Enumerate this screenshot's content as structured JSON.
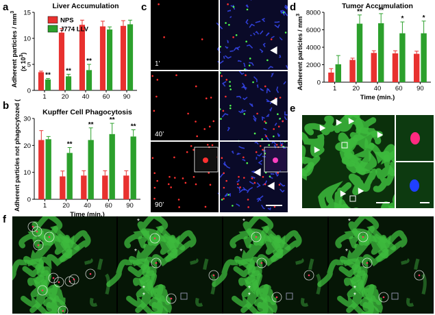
{
  "colors": {
    "nps": "#e8312f",
    "llv": "#2ca02c",
    "blue": "#2a3bd6",
    "green_tissue": "#3dbb3d"
  },
  "panel_labels": [
    "a",
    "b",
    "c",
    "d",
    "e",
    "f"
  ],
  "panel_c": {
    "time_labels": [
      "1’",
      "40’",
      "90’"
    ]
  },
  "chart_data": [
    {
      "id": "a",
      "type": "bar",
      "title": "Liver Accumulation",
      "ylabel": "Adherent particles / mm",
      "ylabel_sup": "3",
      "ylabel2": "(x 10",
      "ylabel2_sup": "3",
      "ylabel2_end": ")",
      "xlabel": "",
      "categories": [
        "1",
        "20",
        "40",
        "60",
        "90"
      ],
      "ylim": [
        0,
        15
      ],
      "yticks": [
        "0",
        "5",
        "10",
        "15"
      ],
      "legend": [
        "NPS",
        "J774 LLV"
      ],
      "series": [
        {
          "name": "NPS",
          "values": [
            3.5,
            11.1,
            12.6,
            12.3,
            12.4
          ],
          "errors": [
            0.2,
            0.8,
            0.9,
            1.0,
            1.0
          ]
        },
        {
          "name": "J774 LLV",
          "values": [
            2.1,
            2.7,
            3.9,
            11.7,
            12.7
          ],
          "errors": [
            0.2,
            0.4,
            1.1,
            0.5,
            0.8
          ]
        }
      ],
      "annotations": [
        {
          "series": 1,
          "index": 0,
          "text": "**"
        },
        {
          "series": 1,
          "index": 1,
          "text": "**"
        },
        {
          "series": 1,
          "index": 2,
          "text": "**"
        }
      ]
    },
    {
      "id": "b",
      "type": "bar",
      "title": "Kupffer Cell Phagocytosis",
      "ylabel": "Adherent particles not phagocytozed (%)",
      "xlabel": "Time (min.)",
      "categories": [
        "1",
        "20",
        "40",
        "60",
        "90"
      ],
      "ylim": [
        0,
        30
      ],
      "yticks": [
        "0",
        "10",
        "20",
        "30"
      ],
      "series": [
        {
          "name": "NPS",
          "values": [
            22,
            8.5,
            8.8,
            8.8,
            8.8
          ],
          "errors": [
            3.5,
            2.0,
            1.8,
            1.8,
            1.8
          ]
        },
        {
          "name": "J774 LLV",
          "values": [
            22.3,
            17.2,
            22,
            24.2,
            23.3
          ],
          "errors": [
            1.0,
            2.0,
            4.5,
            4.0,
            2.5
          ]
        }
      ],
      "annotations": [
        {
          "series": 1,
          "index": 1,
          "text": "**"
        },
        {
          "series": 1,
          "index": 2,
          "text": "**"
        },
        {
          "series": 1,
          "index": 3,
          "text": "**"
        },
        {
          "series": 1,
          "index": 4,
          "text": "**"
        }
      ]
    },
    {
      "id": "d",
      "type": "bar",
      "title": "Tumor Accumulation",
      "ylabel": "Adherent particles / mm",
      "ylabel_sup": "3",
      "xlabel": "Time (min.)",
      "categories": [
        "1",
        "20",
        "40",
        "60",
        "90"
      ],
      "ylim": [
        0,
        8000
      ],
      "yticks": [
        "0",
        "2000",
        "4000",
        "6000",
        "8000"
      ],
      "series": [
        {
          "name": "NPS",
          "values": [
            1100,
            2550,
            3350,
            3300,
            3250
          ],
          "errors": [
            450,
            200,
            250,
            300,
            300
          ]
        },
        {
          "name": "J774 LLV",
          "values": [
            2050,
            6700,
            6750,
            5600,
            5600
          ],
          "errors": [
            1000,
            1000,
            1100,
            1300,
            1400
          ]
        }
      ],
      "annotations": [
        {
          "series": 1,
          "index": 1,
          "text": "**"
        },
        {
          "series": 1,
          "index": 2,
          "text": "**"
        },
        {
          "series": 1,
          "index": 3,
          "text": "*"
        },
        {
          "series": 1,
          "index": 4,
          "text": "*"
        }
      ]
    }
  ]
}
